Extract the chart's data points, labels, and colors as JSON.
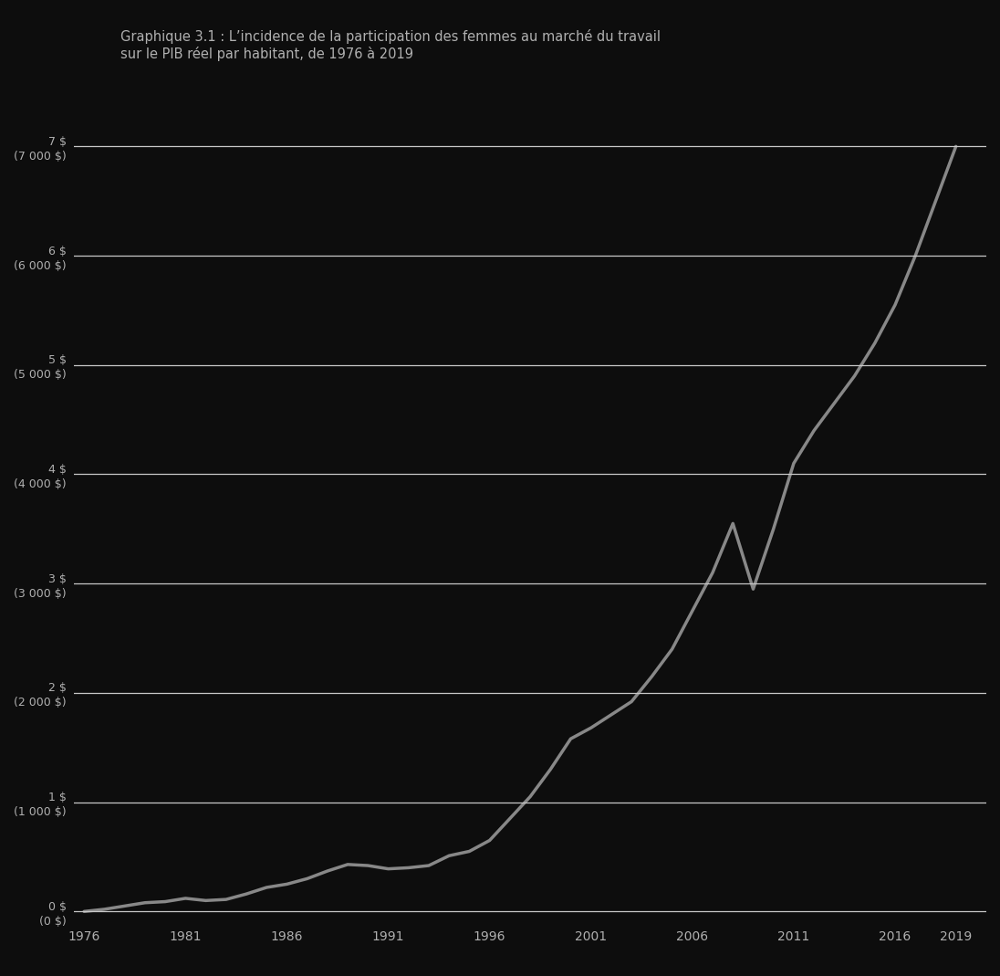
{
  "title_line1": "Graphique 3.1 : L’incidence de la participation des femmes au marché du travail",
  "title_line2": "sur le PIB réel par habitant, de 1976 à 2019",
  "background_color": "#0d0d0d",
  "text_color": "#b0b0b0",
  "grid_color": "#c8c8c8",
  "line_color": "#888888",
  "years": [
    1976,
    1977,
    1978,
    1979,
    1980,
    1981,
    1982,
    1983,
    1984,
    1985,
    1986,
    1987,
    1988,
    1989,
    1990,
    1991,
    1992,
    1993,
    1994,
    1995,
    1996,
    1997,
    1998,
    1999,
    2000,
    2001,
    2002,
    2003,
    2004,
    2005,
    2006,
    2007,
    2008,
    2009,
    2010,
    2011,
    2012,
    2013,
    2014,
    2015,
    2016,
    2017,
    2018,
    2019
  ],
  "values": [
    0,
    0.02,
    0.05,
    0.08,
    0.09,
    0.12,
    0.1,
    0.11,
    0.16,
    0.22,
    0.25,
    0.3,
    0.37,
    0.43,
    0.42,
    0.39,
    0.4,
    0.42,
    0.51,
    0.55,
    0.65,
    0.85,
    1.05,
    1.3,
    1.58,
    1.68,
    1.8,
    1.92,
    2.15,
    2.4,
    2.75,
    3.1,
    3.55,
    2.95,
    3.5,
    4.1,
    4.4,
    4.65,
    4.9,
    5.2,
    5.55,
    6.0,
    6.5,
    7.0
  ],
  "yticks": [
    0,
    1,
    2,
    3,
    4,
    5,
    6,
    7
  ],
  "ytick_labels_left": [
    "0 $\n(0 $)",
    "1 $\n(1 000 $)",
    "2 $\n(2 000 $)",
    "3 $\n(3 000 $)",
    "4 $\n(4 000 $)",
    "5 $\n(5 000 $)",
    "6 $\n(6 000 $)",
    "7 $\n(7 000 $)"
  ],
  "xtick_labels": [
    "1976",
    "1981",
    "1986",
    "1991",
    "1996",
    "2001",
    "2006",
    "2011",
    "2016",
    "2019"
  ],
  "xtick_years": [
    1976,
    1981,
    1986,
    1991,
    1996,
    2001,
    2006,
    2011,
    2016,
    2019
  ],
  "ylim": [
    -0.1,
    7.5
  ],
  "xlim": [
    1975.5,
    2020.5
  ],
  "line_width": 2.5
}
